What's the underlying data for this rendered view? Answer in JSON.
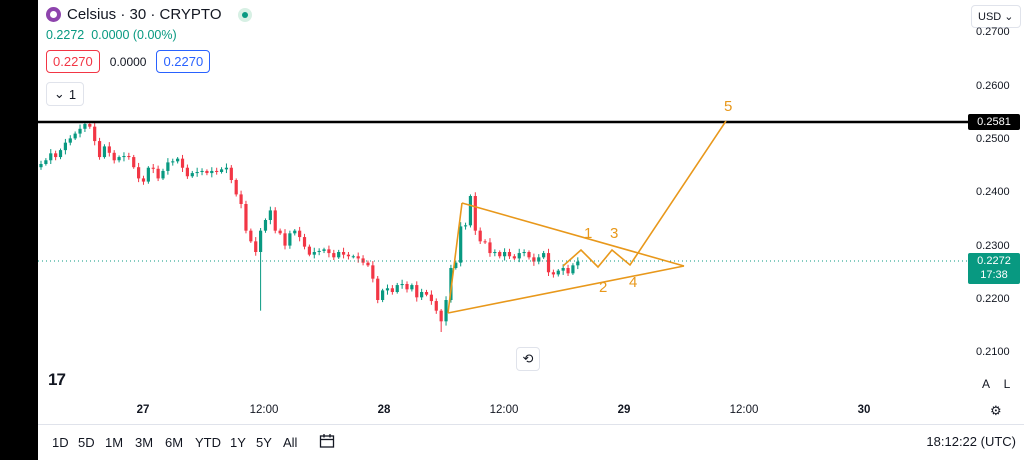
{
  "header": {
    "symbol_title": "Celsius · 30 · CRYPTO",
    "last_price": "0.2272",
    "change": "0.0000 (0.00%)",
    "sell_price": "0.2270",
    "spread": "0.0000",
    "buy_price": "0.2270",
    "indicator_count": "1"
  },
  "axis": {
    "currency": "USD",
    "price_ticks": [
      "0.2700",
      "0.2600",
      "0.2500",
      "0.2400",
      "0.2300",
      "0.2200",
      "0.2100"
    ],
    "resistance_tag": "0.2581",
    "current_tag": "0.2272",
    "countdown": "17:38",
    "time_ticks": [
      "27",
      "12:00",
      "28",
      "12:00",
      "29",
      "12:00",
      "30"
    ],
    "auto_label": "A",
    "log_label": "L"
  },
  "pattern_labels": [
    "1",
    "2",
    "3",
    "4",
    "5"
  ],
  "footer": {
    "ranges": [
      "1D",
      "5D",
      "1M",
      "3M",
      "6M",
      "YTD",
      "1Y",
      "5Y",
      "All"
    ],
    "clock": "18:12:22 (UTC)"
  },
  "colors": {
    "up": "#089981",
    "down": "#f23645",
    "pattern": "#e8981b",
    "resistance": "#000000"
  },
  "chart_data": {
    "type": "candlestick",
    "timeframe": "30",
    "y_range": [
      0.205,
      0.274
    ],
    "x_ticks": [
      "27",
      "12:00",
      "28",
      "12:00",
      "29",
      "12:00",
      "30"
    ],
    "resistance_level": 0.2581,
    "current_price": 0.2272,
    "closes": [
      0.2455,
      0.2462,
      0.2475,
      0.2468,
      0.2481,
      0.2495,
      0.2503,
      0.2512,
      0.2521,
      0.253,
      0.2525,
      0.2498,
      0.2468,
      0.2488,
      0.2476,
      0.2462,
      0.2468,
      0.247,
      0.2468,
      0.2449,
      0.2428,
      0.2422,
      0.2448,
      0.2446,
      0.2428,
      0.2442,
      0.2458,
      0.246,
      0.2465,
      0.2448,
      0.2432,
      0.2438,
      0.244,
      0.2442,
      0.2438,
      0.2442,
      0.244,
      0.2445,
      0.2448,
      0.2425,
      0.2398,
      0.238,
      0.233,
      0.231,
      0.229,
      0.233,
      0.235,
      0.2368,
      0.233,
      0.2325,
      0.2302,
      0.2325,
      0.233,
      0.2318,
      0.23,
      0.2285,
      0.229,
      0.2292,
      0.2295,
      0.2288,
      0.228,
      0.229,
      0.2285,
      0.2282,
      0.2282,
      0.2278,
      0.227,
      0.2265,
      0.224,
      0.22,
      0.2218,
      0.2222,
      0.2215,
      0.2228,
      0.223,
      0.222,
      0.2228,
      0.2205,
      0.2215,
      0.221,
      0.2198,
      0.218,
      0.216,
      0.22,
      0.226,
      0.227,
      0.2338,
      0.234,
      0.2395,
      0.233,
      0.231,
      0.2308,
      0.2288,
      0.229,
      0.2282,
      0.229,
      0.2282,
      0.2278,
      0.2288,
      0.229,
      0.228,
      0.2272,
      0.228,
      0.2288,
      0.2252,
      0.2248,
      0.2255,
      0.226,
      0.225,
      0.2265,
      0.2272
    ],
    "annotations": [
      {
        "type": "horizontal-line",
        "price": 0.2581
      },
      {
        "type": "triangle",
        "points": [
          [
            "28 ~09:00",
            0.2398
          ],
          [
            "28 ~09:00",
            0.2153
          ],
          [
            "29 ~07:00",
            0.2266
          ]
        ]
      },
      {
        "type": "wave-path",
        "labels": [
          "1",
          "2",
          "3",
          "4",
          "5"
        ],
        "points": [
          [
            "28 ~21:00",
            0.2272
          ],
          [
            "28 ~23:00",
            0.2295
          ],
          [
            "29 ~01:00",
            0.2263
          ],
          [
            "29 ~02:00",
            0.2292
          ],
          [
            "29 ~03:00",
            0.2265
          ],
          [
            "29 ~14:00",
            0.258
          ]
        ]
      }
    ]
  }
}
